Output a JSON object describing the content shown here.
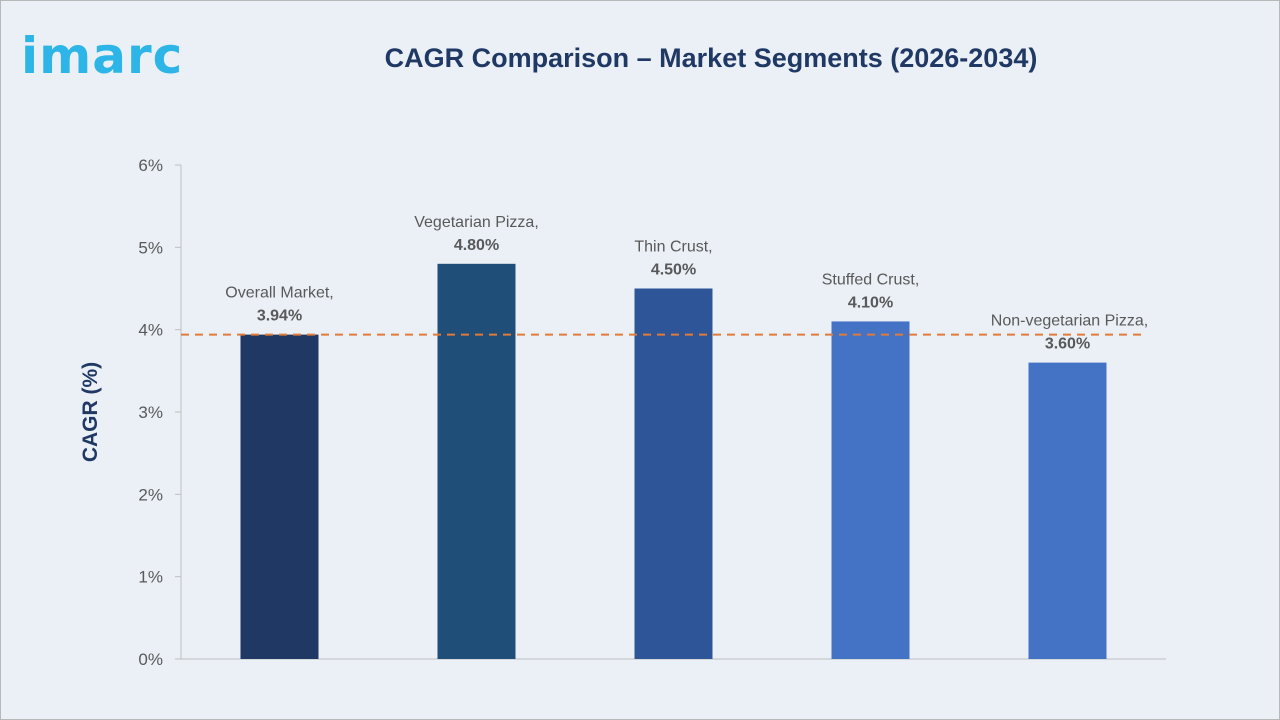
{
  "header": {
    "logo_text": "imarc",
    "title": "CAGR Comparison – Market Segments (2026-2034)"
  },
  "colors": {
    "background": "#ebf0f7",
    "logo": "#2cb5e6",
    "title": "#1f3864",
    "reference_line": "#e07b39",
    "bars": [
      "#1f3864",
      "#1f4e79",
      "#2e5597",
      "#4472c4",
      "#4472c4"
    ]
  },
  "chart_data": {
    "type": "bar",
    "title": "CAGR Comparison – Market Segments (2026-2034)",
    "xlabel": "",
    "ylabel": "CAGR (%)",
    "ylim": [
      0,
      6
    ],
    "yticks": [
      "0%",
      "1%",
      "2%",
      "3%",
      "4%",
      "5%",
      "6%"
    ],
    "categories": [
      "Overall Market",
      "Vegetarian Pizza",
      "Thin Crust",
      "Stuffed Crust",
      "Non-vegetarian Pizza"
    ],
    "values": [
      3.94,
      4.8,
      4.5,
      4.1,
      3.6
    ],
    "data_labels": [
      [
        "Overall Market,",
        "3.94%"
      ],
      [
        "Vegetarian Pizza,",
        "4.80%"
      ],
      [
        "Thin Crust,",
        "4.50%"
      ],
      [
        "Stuffed Crust,",
        "4.10%"
      ],
      [
        "Non-vegetarian Pizza,",
        "3.60%"
      ]
    ],
    "reference_line": {
      "value": 3.94,
      "style": "dashed"
    },
    "grid": false,
    "legend": "none"
  }
}
